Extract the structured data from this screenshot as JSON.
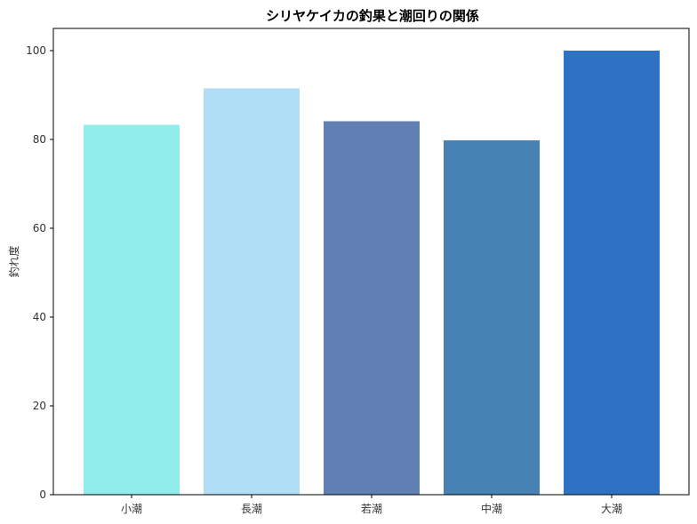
{
  "chart_data": {
    "type": "bar",
    "title": "シリヤケイカの釣果と潮回りの関係",
    "xlabel": "",
    "ylabel": "釣れ度",
    "ylim": [
      0,
      105
    ],
    "yticks": [
      0,
      20,
      40,
      60,
      80,
      100
    ],
    "categories": [
      "小潮",
      "長潮",
      "若潮",
      "中潮",
      "大潮"
    ],
    "values": [
      83.3,
      91.5,
      84.1,
      79.8,
      100.0
    ],
    "colors": [
      "#91ecec",
      "#b0def5",
      "#607fb3",
      "#4682b4",
      "#2e72c3"
    ],
    "grid": false,
    "legend": "none"
  }
}
